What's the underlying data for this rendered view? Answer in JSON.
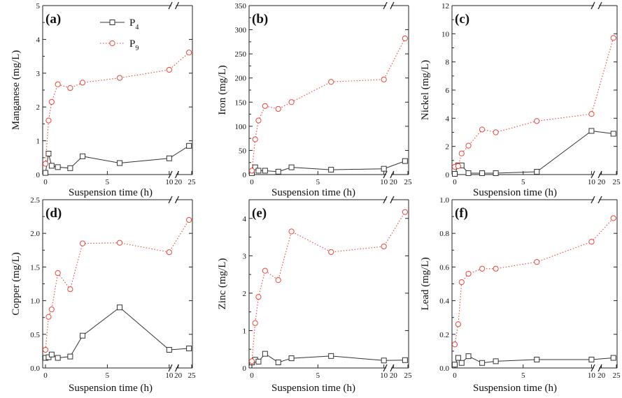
{
  "figure": {
    "series_names": [
      "P",
      "P"
    ],
    "series_subscripts": [
      "4",
      "9"
    ],
    "series_colors": [
      "#333333",
      "#e8453c"
    ],
    "x_label": "Suspension time (h)"
  },
  "chart_data": [
    {
      "type": "line",
      "panel": "(a)",
      "ylabel": "Manganese (mg/L)",
      "xlabel": "Suspension time (h)",
      "ylim": [
        0,
        5
      ],
      "yticks": [
        "0",
        "1",
        "2",
        "3",
        "4",
        "5"
      ],
      "xticks": [
        "0",
        "5",
        "10",
        "20",
        "25"
      ],
      "x_break": [
        10,
        20
      ],
      "legend": "top-left",
      "series": [
        {
          "x": [
            0,
            0.25,
            0.5,
            1,
            2,
            3,
            6,
            10,
            24
          ],
          "values": [
            0.05,
            0.62,
            0.26,
            0.22,
            0.19,
            0.54,
            0.34,
            0.48,
            0.85
          ]
        },
        {
          "x": [
            0,
            0.25,
            0.5,
            1,
            2,
            3,
            6,
            10,
            24
          ],
          "values": [
            0.32,
            1.6,
            2.15,
            2.67,
            2.56,
            2.72,
            2.86,
            3.1,
            3.61
          ]
        }
      ]
    },
    {
      "type": "line",
      "panel": "(b)",
      "ylabel": "Iron (mg/L)",
      "xlabel": "Suspension time (h)",
      "ylim": [
        0,
        350
      ],
      "yticks": [
        "0",
        "50",
        "100",
        "150",
        "200",
        "250",
        "300",
        "350"
      ],
      "xticks": [
        "0",
        "5",
        "10",
        "20",
        "25"
      ],
      "x_break": [
        10,
        20
      ],
      "series": [
        {
          "x": [
            0,
            0.25,
            0.5,
            1,
            2,
            3,
            6,
            10,
            24
          ],
          "values": [
            3,
            15,
            8,
            8,
            6,
            15,
            10,
            12,
            28
          ]
        },
        {
          "x": [
            0,
            0.25,
            0.5,
            1,
            2,
            3,
            6,
            10,
            24
          ],
          "values": [
            8,
            73,
            112,
            142,
            136,
            150,
            192,
            197,
            282
          ]
        }
      ]
    },
    {
      "type": "line",
      "panel": "(c)",
      "ylabel": "Nickel (mg/L)",
      "xlabel": "Suspension time (h)",
      "ylim": [
        0,
        12
      ],
      "yticks": [
        "0",
        "2",
        "4",
        "6",
        "8",
        "10",
        "12"
      ],
      "xticks": [
        "0",
        "5",
        "10",
        "20",
        "25"
      ],
      "x_break": [
        10,
        20
      ],
      "series": [
        {
          "x": [
            0,
            0.25,
            0.5,
            1,
            2,
            3,
            6,
            10,
            24
          ],
          "values": [
            0.05,
            0.65,
            0.65,
            0.1,
            0.1,
            0.1,
            0.2,
            3.1,
            2.9
          ]
        },
        {
          "x": [
            0,
            0.25,
            0.5,
            1,
            2,
            3,
            6,
            10,
            24
          ],
          "values": [
            0.55,
            0.6,
            1.5,
            2.05,
            3.2,
            3.0,
            3.8,
            4.3,
            9.7
          ]
        }
      ]
    },
    {
      "type": "line",
      "panel": "(d)",
      "ylabel": "Copper (mg/L)",
      "xlabel": "Suspension time (h)",
      "ylim": [
        0,
        2.5
      ],
      "yticks": [
        "0.0",
        "0.5",
        "1.0",
        "1.5",
        "2.0",
        "2.5"
      ],
      "xticks": [
        "0",
        "5",
        "10",
        "20",
        "25"
      ],
      "x_break": [
        10,
        20
      ],
      "series": [
        {
          "x": [
            0,
            0.25,
            0.5,
            1,
            2,
            3,
            6,
            10,
            24
          ],
          "values": [
            0.15,
            0.16,
            0.2,
            0.15,
            0.17,
            0.48,
            0.9,
            0.27,
            0.29
          ]
        },
        {
          "x": [
            0,
            0.25,
            0.5,
            1,
            2,
            3,
            6,
            10,
            24
          ],
          "values": [
            0.27,
            0.76,
            0.87,
            1.41,
            1.17,
            1.85,
            1.86,
            1.72,
            2.2
          ]
        }
      ]
    },
    {
      "type": "line",
      "panel": "(e)",
      "ylabel": "Zinc (mg/L)",
      "xlabel": "Suspension time (h)",
      "ylim": [
        0,
        4.5
      ],
      "yticks": [
        "0",
        "1",
        "2",
        "3",
        "4"
      ],
      "xticks": [
        "0",
        "5",
        "10",
        "20",
        "25"
      ],
      "x_break": [
        10,
        20
      ],
      "series": [
        {
          "x": [
            0,
            0.25,
            0.5,
            1,
            2,
            3,
            6,
            10,
            24
          ],
          "values": [
            0.15,
            0.22,
            0.17,
            0.38,
            0.15,
            0.26,
            0.32,
            0.2,
            0.21
          ]
        },
        {
          "x": [
            0,
            0.25,
            0.5,
            1,
            2,
            3,
            6,
            10,
            24
          ],
          "values": [
            0.18,
            1.2,
            1.9,
            2.6,
            2.35,
            3.65,
            3.1,
            3.25,
            4.17
          ]
        }
      ]
    },
    {
      "type": "line",
      "panel": "(f)",
      "ylabel": "Lead (mg/L)",
      "xlabel": "Suspension time (h)",
      "ylim": [
        0,
        1.0
      ],
      "yticks": [
        "0.0",
        "0.2",
        "0.4",
        "0.6",
        "0.8",
        "1.0"
      ],
      "xticks": [
        "0",
        "5",
        "10",
        "20",
        "25"
      ],
      "x_break": [
        10,
        20
      ],
      "series": [
        {
          "x": [
            0,
            0.25,
            0.5,
            1,
            2,
            3,
            6,
            10,
            24
          ],
          "values": [
            0.02,
            0.06,
            0.03,
            0.07,
            0.03,
            0.04,
            0.05,
            0.05,
            0.06
          ]
        },
        {
          "x": [
            0,
            0.25,
            0.5,
            1,
            2,
            3,
            6,
            10,
            24
          ],
          "values": [
            0.14,
            0.26,
            0.51,
            0.56,
            0.59,
            0.59,
            0.63,
            0.75,
            0.89
          ]
        }
      ]
    }
  ]
}
